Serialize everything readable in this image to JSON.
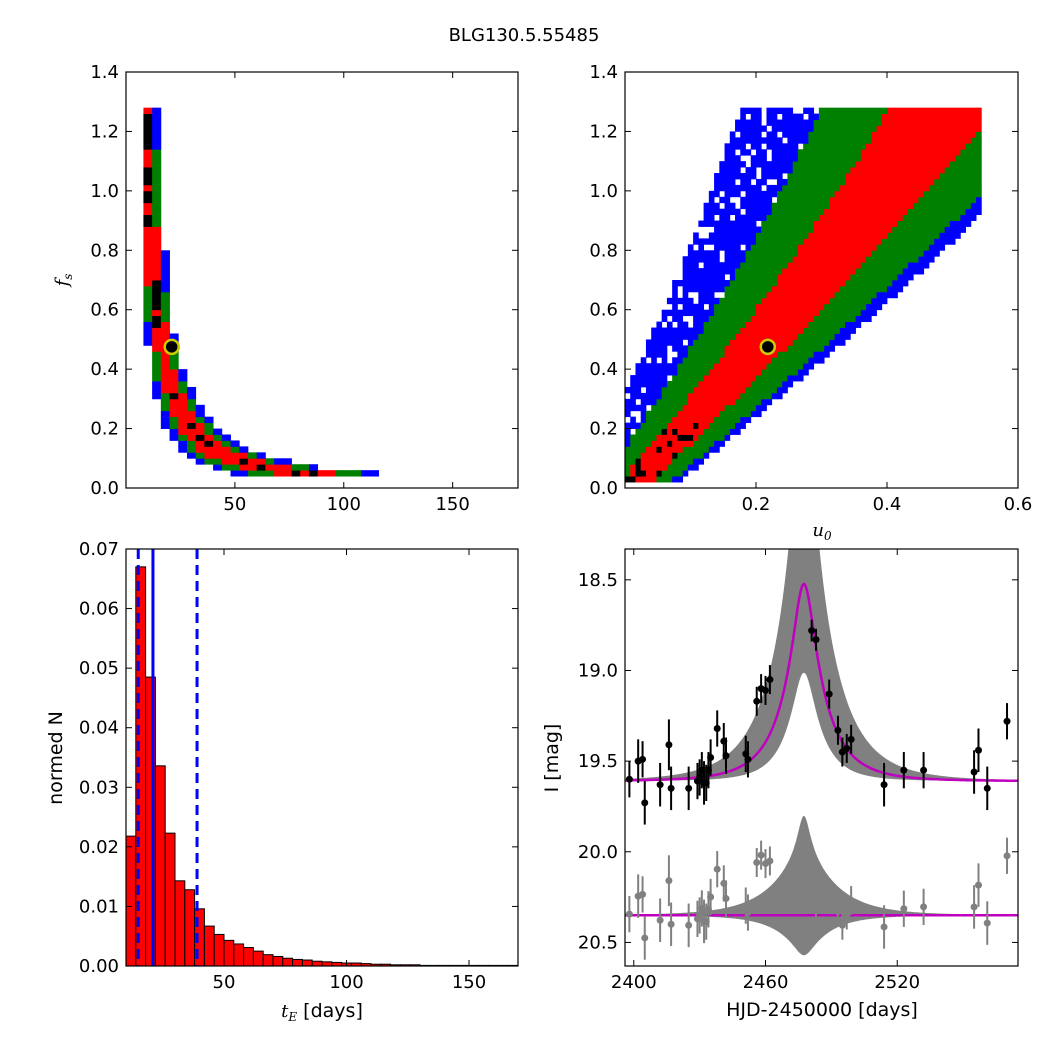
{
  "figure": {
    "title": "BLG130.5.55485"
  },
  "chart_data": [
    {
      "id": "fs-vs-tE",
      "type": "heatmap",
      "ylabel_symbol": "f",
      "ylabel_sub": "s",
      "xlim": [
        0,
        180
      ],
      "ylim": [
        0.0,
        1.4
      ],
      "xticks": [
        50,
        100,
        150
      ],
      "xtick_labels": [
        "50",
        "100",
        "150"
      ],
      "yticks": [
        0.0,
        0.2,
        0.4,
        0.6,
        0.8,
        1.0,
        1.2,
        1.4
      ],
      "ytick_labels": [
        "0.0",
        "0.2",
        "0.4",
        "0.6",
        "0.8",
        "1.0",
        "1.2",
        "1.4"
      ],
      "colors": {
        "outer": "#0000ff",
        "mid": "#008000",
        "inner": "#ff0000",
        "core": "#000000"
      },
      "best_fit": {
        "x": 21,
        "y": 0.475
      }
    },
    {
      "id": "fs-vs-u0",
      "type": "heatmap",
      "xlabel_symbol": "u",
      "xlabel_sub": "0",
      "xlim": [
        0.0,
        0.6
      ],
      "ylim": [
        0.0,
        1.4
      ],
      "xticks": [
        0.2,
        0.4,
        0.6
      ],
      "xtick_labels": [
        "0.2",
        "0.4",
        "0.6"
      ],
      "yticks": [
        0.0,
        0.2,
        0.4,
        0.6,
        0.8,
        1.0,
        1.2,
        1.4
      ],
      "ytick_labels": [
        "0.0",
        "0.2",
        "0.4",
        "0.6",
        "0.8",
        "1.0",
        "1.2",
        "1.4"
      ],
      "colors": {
        "outer": "#0000ff",
        "mid": "#008000",
        "inner": "#ff0000",
        "core": "#000000"
      },
      "best_fit": {
        "x": 0.218,
        "y": 0.475
      }
    },
    {
      "id": "tE-histogram",
      "type": "bar",
      "xlabel_symbol": "t",
      "xlabel_sub": "E",
      "xlabel_unit": "[days]",
      "ylabel": "normed N",
      "xlim": [
        10,
        170
      ],
      "ylim": [
        0.0,
        0.07
      ],
      "xticks": [
        50,
        100,
        150
      ],
      "xtick_labels": [
        "50",
        "100",
        "150"
      ],
      "yticks": [
        0.0,
        0.01,
        0.02,
        0.03,
        0.04,
        0.05,
        0.06,
        0.07
      ],
      "ytick_labels": [
        "0.00",
        "0.01",
        "0.02",
        "0.03",
        "0.04",
        "0.05",
        "0.06",
        "0.07"
      ],
      "bin_start": 10,
      "bin_width": 4,
      "values": [
        0.0218,
        0.067,
        0.0485,
        0.0336,
        0.0223,
        0.0143,
        0.0128,
        0.0096,
        0.0067,
        0.0053,
        0.0043,
        0.0037,
        0.0031,
        0.0025,
        0.0019,
        0.0016,
        0.0013,
        0.0011,
        0.001,
        0.0008,
        0.0007,
        0.0006,
        0.0005,
        0.0005,
        0.0004,
        0.0003,
        0.0003,
        0.0002,
        0.0002,
        0.0002,
        0.0001,
        0.0001,
        0.0001,
        0.0001,
        0.0001,
        0.0001,
        0.0001,
        0.0001,
        0.0001,
        0.0001
      ],
      "bar_color": "#ff0000",
      "median": 21,
      "interval": [
        15,
        39
      ],
      "line_color": "#0000ff"
    },
    {
      "id": "light-curve",
      "type": "scatter",
      "xlabel": "HJD-2450000 [days]",
      "ylabel": "I [mag]",
      "xlim": [
        2396,
        2575
      ],
      "ylim": [
        20.63,
        18.33
      ],
      "xticks": [
        2400,
        2460,
        2520
      ],
      "xtick_labels": [
        "2400",
        "2460",
        "2520"
      ],
      "yticks": [
        18.5,
        19.0,
        19.5,
        20.0,
        20.5
      ],
      "ytick_labels": [
        "18.5",
        "19.0",
        "19.5",
        "20.0",
        "20.5"
      ],
      "model": {
        "t0": 2477.5,
        "tE": 21,
        "u0": 0.22,
        "fs": 0.475,
        "baseline": 19.61,
        "color": "#bf00bf"
      },
      "residual_offset": 20.35,
      "band_color": "#808080",
      "points": [
        {
          "t": 2398,
          "mag": 19.6,
          "err": 0.1
        },
        {
          "t": 2402,
          "mag": 19.5,
          "err": 0.12
        },
        {
          "t": 2404,
          "mag": 19.49,
          "err": 0.1
        },
        {
          "t": 2405,
          "mag": 19.73,
          "err": 0.12
        },
        {
          "t": 2412,
          "mag": 19.63,
          "err": 0.12
        },
        {
          "t": 2416,
          "mag": 19.41,
          "err": 0.14
        },
        {
          "t": 2417,
          "mag": 19.65,
          "err": 0.12
        },
        {
          "t": 2425,
          "mag": 19.65,
          "err": 0.12
        },
        {
          "t": 2429,
          "mag": 19.61,
          "err": 0.1
        },
        {
          "t": 2430,
          "mag": 19.59,
          "err": 0.1
        },
        {
          "t": 2431,
          "mag": 19.55,
          "err": 0.1
        },
        {
          "t": 2432,
          "mag": 19.62,
          "err": 0.12
        },
        {
          "t": 2433,
          "mag": 19.62,
          "err": 0.1
        },
        {
          "t": 2434,
          "mag": 19.55,
          "err": 0.1
        },
        {
          "t": 2435,
          "mag": 19.48,
          "err": 0.1
        },
        {
          "t": 2438,
          "mag": 19.32,
          "err": 0.1
        },
        {
          "t": 2441,
          "mag": 19.39,
          "err": 0.1
        },
        {
          "t": 2442,
          "mag": 19.47,
          "err": 0.1
        },
        {
          "t": 2451,
          "mag": 19.46,
          "err": 0.1
        },
        {
          "t": 2452,
          "mag": 19.49,
          "err": 0.1
        },
        {
          "t": 2456,
          "mag": 19.17,
          "err": 0.08
        },
        {
          "t": 2458,
          "mag": 19.1,
          "err": 0.08
        },
        {
          "t": 2460,
          "mag": 19.11,
          "err": 0.08
        },
        {
          "t": 2462,
          "mag": 19.05,
          "err": 0.08
        },
        {
          "t": 2481,
          "mag": 18.78,
          "err": 0.06
        },
        {
          "t": 2483,
          "mag": 18.83,
          "err": 0.06
        },
        {
          "t": 2489,
          "mag": 19.13,
          "err": 0.08
        },
        {
          "t": 2493,
          "mag": 19.33,
          "err": 0.08
        },
        {
          "t": 2495,
          "mag": 19.45,
          "err": 0.08
        },
        {
          "t": 2497,
          "mag": 19.43,
          "err": 0.08
        },
        {
          "t": 2499,
          "mag": 19.38,
          "err": 0.08
        },
        {
          "t": 2514,
          "mag": 19.63,
          "err": 0.12
        },
        {
          "t": 2523,
          "mag": 19.55,
          "err": 0.1
        },
        {
          "t": 2532,
          "mag": 19.55,
          "err": 0.1
        },
        {
          "t": 2555,
          "mag": 19.56,
          "err": 0.12
        },
        {
          "t": 2557,
          "mag": 19.44,
          "err": 0.12
        },
        {
          "t": 2561,
          "mag": 19.65,
          "err": 0.12
        },
        {
          "t": 2570,
          "mag": 19.28,
          "err": 0.1
        }
      ]
    }
  ]
}
